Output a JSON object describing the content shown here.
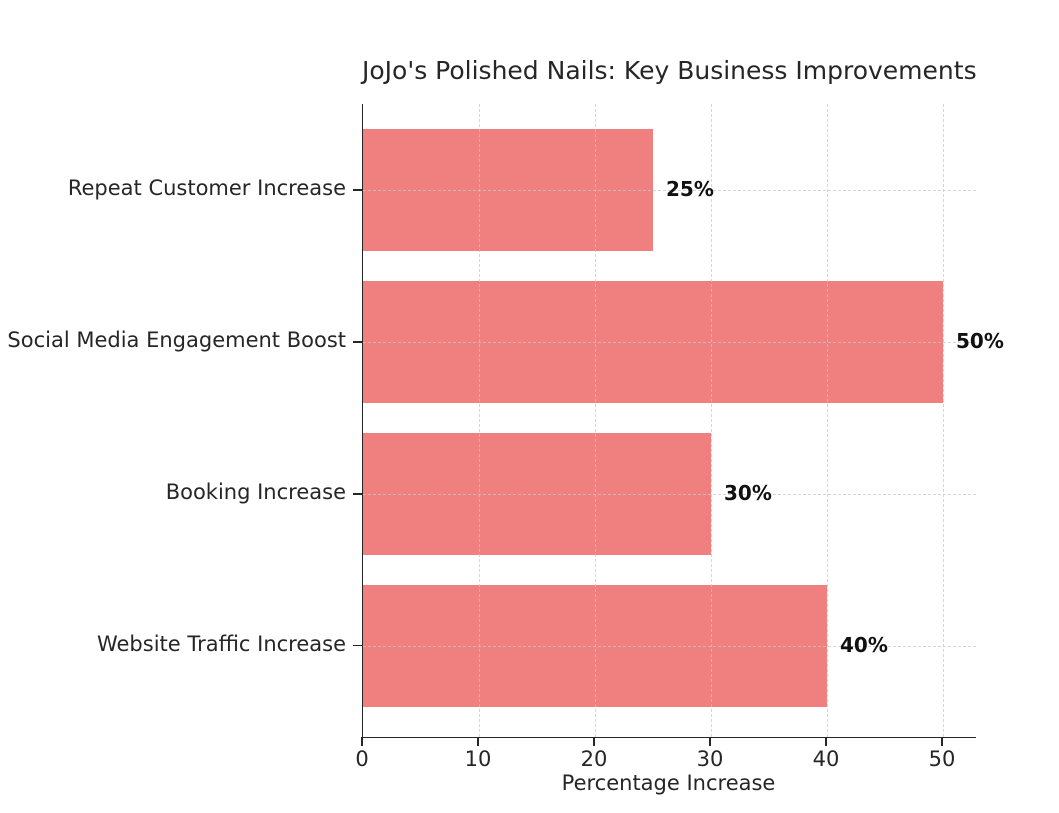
{
  "title": "JoJo's Polished Nails: Key Business Improvements",
  "chart_data": {
    "type": "bar",
    "orientation": "horizontal",
    "title": "JoJo's Polished Nails: Key Business Improvements",
    "categories": [
      "Repeat Customer Increase",
      "Social Media Engagement Boost",
      "Booking Increase",
      "Website Traffic Increase"
    ],
    "values": [
      25,
      50,
      30,
      40
    ],
    "value_labels": [
      "25%",
      "50%",
      "30%",
      "40%"
    ],
    "xlabel": "Percentage Increase",
    "ylabel": "",
    "xticks": [
      0,
      10,
      20,
      30,
      40,
      50
    ],
    "xlim": [
      0,
      52.8
    ],
    "bar_color": "#f08080",
    "grid": "dashed-both-axes",
    "legend": "none",
    "spine_color": "#262626"
  }
}
